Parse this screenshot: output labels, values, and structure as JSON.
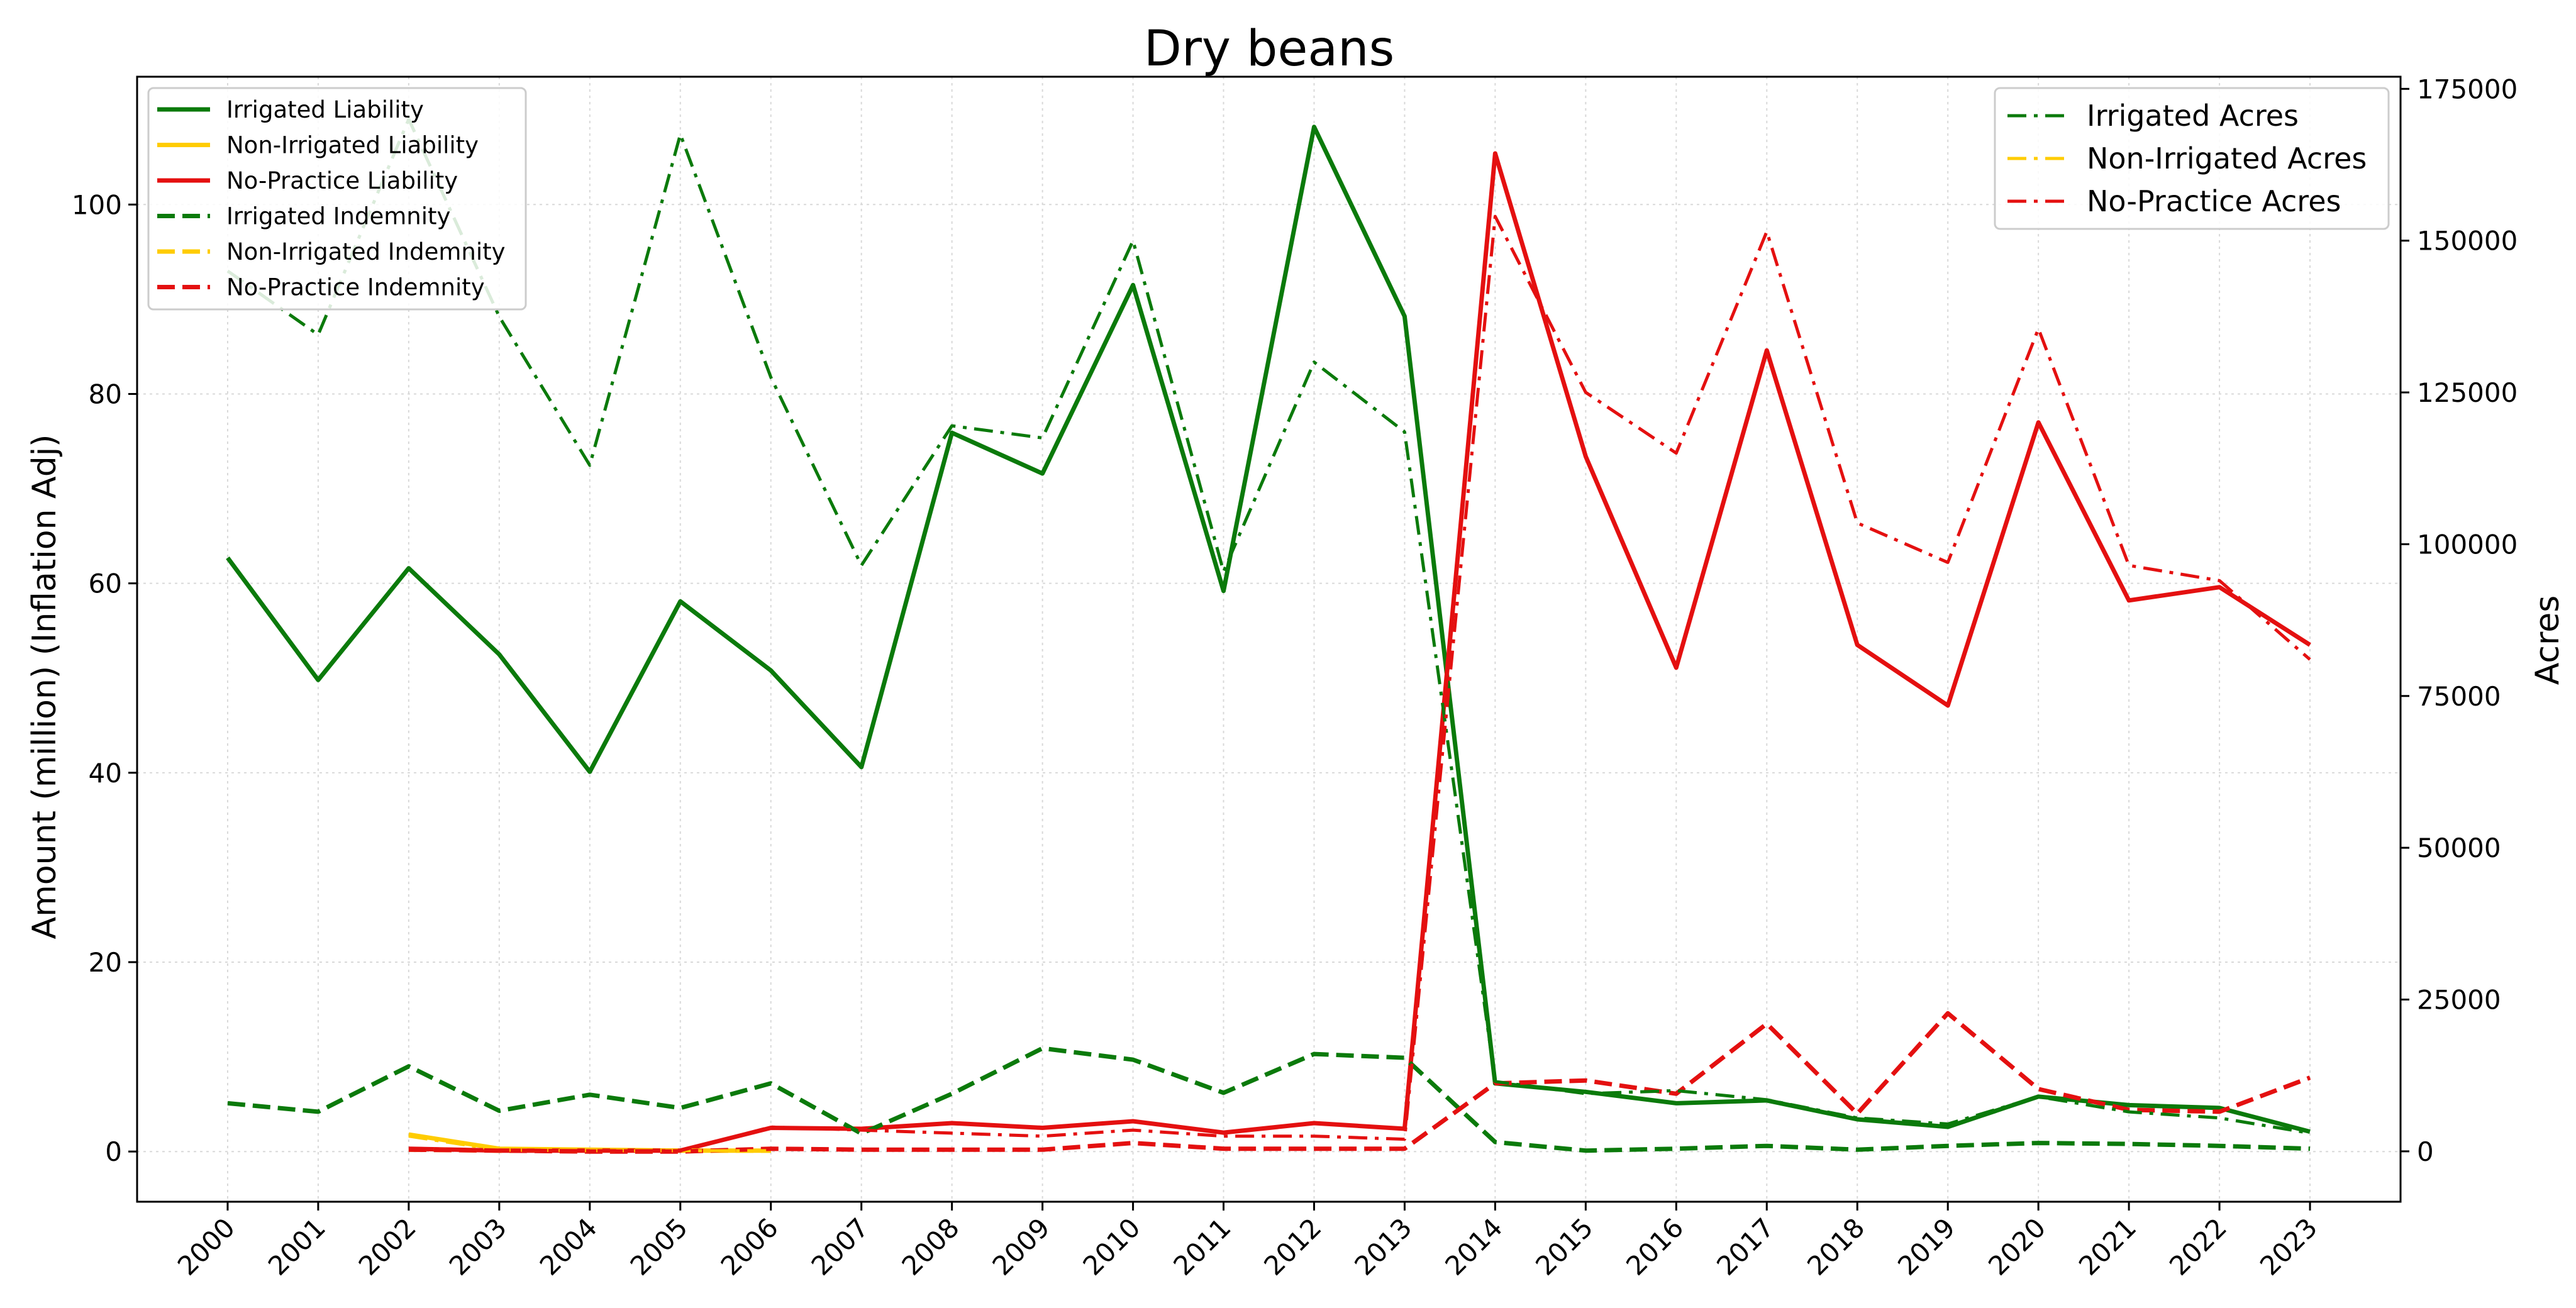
{
  "chart_data": {
    "type": "line",
    "title": "Dry beans",
    "xlabel": "",
    "ylabel_left": "Amount (million) (Inflation Adj)",
    "ylabel_right": "Acres",
    "x": [
      2000,
      2001,
      2002,
      2003,
      2004,
      2005,
      2006,
      2007,
      2008,
      2009,
      2010,
      2011,
      2012,
      2013,
      2014,
      2015,
      2016,
      2017,
      2018,
      2019,
      2020,
      2021,
      2022,
      2023
    ],
    "xlim": [
      1999.0,
      2024.0
    ],
    "ylim_left": [
      -5.3,
      113.5
    ],
    "ylim_right": [
      -8300,
      177000
    ],
    "yticks_left": [
      0,
      20,
      40,
      60,
      80,
      100
    ],
    "yticks_right": [
      0,
      25000,
      50000,
      75000,
      100000,
      125000,
      150000,
      175000
    ],
    "grid": true,
    "legend_left_placement": "upper-left",
    "legend_right_placement": "upper-right",
    "colors": {
      "irrigated": "#0b7a0b",
      "non_irrigated": "#ffcc00",
      "no_practice": "#e41010"
    },
    "series": [
      {
        "name": "Irrigated Liability",
        "axis": "left",
        "style": "solid",
        "color": "#0b7a0b",
        "values": [
          62.7,
          49.8,
          61.6,
          52.5,
          40.1,
          58.1,
          50.8,
          40.6,
          75.9,
          71.6,
          91.5,
          59.2,
          108.2,
          88.2,
          7.2,
          6.3,
          5.1,
          5.4,
          3.4,
          2.6,
          5.8,
          4.9,
          4.6,
          2.1
        ]
      },
      {
        "name": "Non-Irrigated Liability",
        "axis": "left",
        "style": "solid",
        "color": "#ffcc00",
        "values": [
          null,
          null,
          1.8,
          0.3,
          0.2,
          0.1,
          0.1,
          null,
          null,
          null,
          null,
          null,
          null,
          null,
          null,
          null,
          null,
          null,
          null,
          null,
          null,
          null,
          null,
          null
        ]
      },
      {
        "name": "No-Practice Liability",
        "axis": "left",
        "style": "solid",
        "color": "#e41010",
        "values": [
          null,
          null,
          0.3,
          0.1,
          0.1,
          0.1,
          2.5,
          2.4,
          3.0,
          2.5,
          3.2,
          2.0,
          3.0,
          2.4,
          105.4,
          73.4,
          51.1,
          84.6,
          53.5,
          47.1,
          77.0,
          58.2,
          59.6,
          53.5
        ]
      },
      {
        "name": "Irrigated Indemnity",
        "axis": "left",
        "style": "dashed",
        "color": "#0b7a0b",
        "values": [
          5.1,
          4.2,
          9.0,
          4.3,
          6.0,
          4.6,
          7.2,
          1.9,
          6.1,
          10.9,
          9.7,
          6.2,
          10.3,
          9.9,
          1.0,
          0.1,
          0.3,
          0.6,
          0.2,
          0.6,
          0.9,
          0.8,
          0.6,
          0.3
        ]
      },
      {
        "name": "Non-Irrigated Indemnity",
        "axis": "left",
        "style": "dashed",
        "color": "#ffcc00",
        "values": [
          null,
          null,
          0.2,
          0.1,
          0.1,
          0.1,
          0.1,
          null,
          null,
          null,
          null,
          null,
          null,
          null,
          null,
          null,
          null,
          null,
          null,
          null,
          null,
          null,
          null,
          null
        ]
      },
      {
        "name": "No-Practice Indemnity",
        "axis": "left",
        "style": "dashed",
        "color": "#e41010",
        "values": [
          null,
          null,
          0.2,
          0.1,
          0.0,
          0.0,
          0.3,
          0.2,
          0.2,
          0.2,
          0.9,
          0.3,
          0.3,
          0.3,
          7.2,
          7.5,
          6.1,
          13.5,
          4.0,
          14.6,
          6.6,
          4.4,
          4.2,
          7.8
        ]
      },
      {
        "name": "Irrigated Acres",
        "axis": "right",
        "style": "dashdot",
        "color": "#0b7a0b",
        "values": [
          145000,
          134500,
          170000,
          137500,
          113000,
          167500,
          127500,
          96500,
          119500,
          117500,
          150000,
          95500,
          130000,
          118500,
          11500,
          9500,
          10000,
          8500,
          5500,
          4500,
          9000,
          6500,
          5500,
          3000
        ]
      },
      {
        "name": "Non-Irrigated Acres",
        "axis": "right",
        "style": "dashdot",
        "color": "#ffcc00",
        "values": [
          null,
          null,
          2500,
          200,
          100,
          100,
          100,
          null,
          null,
          null,
          null,
          null,
          null,
          null,
          null,
          null,
          null,
          null,
          null,
          null,
          null,
          null,
          null,
          null
        ]
      },
      {
        "name": "No-Practice Acres",
        "axis": "right",
        "style": "dashdot",
        "color": "#e41010",
        "values": [
          null,
          null,
          500,
          200,
          100,
          100,
          4000,
          3500,
          3000,
          2500,
          3500,
          2500,
          2500,
          2000,
          154000,
          125000,
          115000,
          151500,
          103500,
          97000,
          135500,
          96500,
          94000,
          81000
        ]
      }
    ],
    "legend_left": [
      "Irrigated Liability",
      "Non-Irrigated Liability",
      "No-Practice Liability",
      "Irrigated Indemnity",
      "Non-Irrigated Indemnity",
      "No-Practice Indemnity"
    ],
    "legend_right": [
      "Irrigated Acres",
      "Non-Irrigated Acres",
      "No-Practice Acres"
    ]
  }
}
